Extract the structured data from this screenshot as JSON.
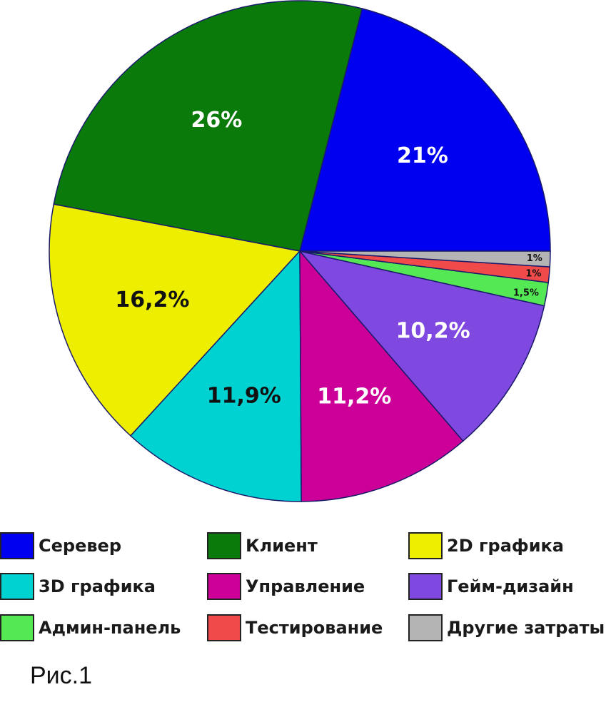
{
  "chart_data": {
    "type": "pie",
    "title": "",
    "slices": [
      {
        "name": "Серевер",
        "value": 21,
        "label": "21%",
        "color": "#0000f0",
        "label_color": "#ffffff"
      },
      {
        "name": "Клиент",
        "value": 26,
        "label": "26%",
        "color": "#0a7a0a",
        "label_color": "#ffffff"
      },
      {
        "name": "2D графика",
        "value": 16.2,
        "label": "16,2%",
        "color": "#eeee00",
        "label_color": "#111111"
      },
      {
        "name": "3D графика",
        "value": 11.9,
        "label": "11,9%",
        "color": "#00d2d2",
        "label_color": "#111111"
      },
      {
        "name": "Управление",
        "value": 11.2,
        "label": "11,2%",
        "color": "#cc0099",
        "label_color": "#ffffff"
      },
      {
        "name": "Гейм-дизайн",
        "value": 10.2,
        "label": "10,2%",
        "color": "#7f48e0",
        "label_color": "#ffffff"
      },
      {
        "name": "Админ-панель",
        "value": 1.5,
        "label": "1,5%",
        "color": "#55e855",
        "label_color": "#111111"
      },
      {
        "name": "Тестирование",
        "value": 1,
        "label": "1%",
        "color": "#f04a4a",
        "label_color": "#111111"
      },
      {
        "name": "Другие затраты",
        "value": 1,
        "label": "1%",
        "color": "#b4b4b4",
        "label_color": "#111111"
      }
    ],
    "legend_position": "bottom"
  },
  "legend": [
    {
      "label": "Серевер",
      "color": "#0000f0"
    },
    {
      "label": "Клиент",
      "color": "#0a7a0a"
    },
    {
      "label": "2D графика",
      "color": "#eeee00"
    },
    {
      "label": "3D графика",
      "color": "#00d2d2"
    },
    {
      "label": "Управление",
      "color": "#cc0099"
    },
    {
      "label": "Гейм-дизайн",
      "color": "#7f48e0"
    },
    {
      "label": "Админ-панель",
      "color": "#55e855"
    },
    {
      "label": "Тестирование",
      "color": "#f04a4a"
    },
    {
      "label": "Другие затраты",
      "color": "#b4b4b4"
    }
  ],
  "caption": "Рис.1"
}
